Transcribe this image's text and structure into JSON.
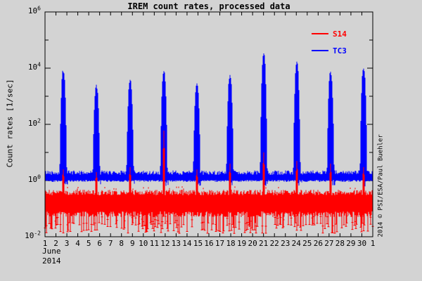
{
  "window": {
    "background": "#d3d3d3"
  },
  "chart_data": {
    "type": "line",
    "title": "IREM count rates, processed data",
    "ylabel": "Count rates [1/sec]",
    "credit": "2014 © PSI/ESA/Paul Buehler",
    "x_axis": {
      "month_label": "June",
      "year_label": "2014",
      "days": 31,
      "tick_labels": [
        "1",
        "2",
        "3",
        "4",
        "5",
        "6",
        "7",
        "8",
        "9",
        "10",
        "11",
        "12",
        "13",
        "14",
        "15",
        "16",
        "17",
        "18",
        "19",
        "20",
        "21",
        "22",
        "23",
        "24",
        "25",
        "26",
        "27",
        "28",
        "29",
        "30",
        "1"
      ]
    },
    "y_axis": {
      "scale": "log",
      "min_exp": -2,
      "max_exp": 6,
      "labeled_exponents": [
        6,
        4,
        2,
        0,
        -2
      ],
      "minor_exponents": [
        5,
        3,
        1,
        -1
      ]
    },
    "legend": [
      {
        "label": "S14",
        "color": "#ff0000"
      },
      {
        "label": "TC3",
        "color": "#0000ff"
      }
    ],
    "series": [
      {
        "name": "S14",
        "color": "#ff0000",
        "band_top_range": [
          0.3,
          0.47
        ],
        "band_bottom_range": [
          0.05,
          0.08
        ],
        "needle_depth_range": [
          0.013,
          0.032
        ],
        "needle_probability": 0.3,
        "perigee_spikes": [
          {
            "day": 2.67,
            "value": 2.5
          },
          {
            "day": 5.7,
            "value": 2.0
          },
          {
            "day": 8.79,
            "value": 3.0
          },
          {
            "day": 11.88,
            "value": 60
          },
          {
            "day": 14.9,
            "value": 2.5
          },
          {
            "day": 17.93,
            "value": 4.0
          },
          {
            "day": 21.02,
            "value": 10
          },
          {
            "day": 24.05,
            "value": 5.0
          },
          {
            "day": 27.14,
            "value": 4.0
          },
          {
            "day": 30.16,
            "value": 3.0
          }
        ]
      },
      {
        "name": "TC3",
        "color": "#0000ff",
        "band_top_range": [
          1.6,
          2.3
        ],
        "band_bottom_range": [
          0.9,
          1.05
        ],
        "peaks": [
          {
            "day": 2.67,
            "value": 8000
          },
          {
            "day": 5.7,
            "value": 2300
          },
          {
            "day": 8.79,
            "value": 3500
          },
          {
            "day": 11.88,
            "value": 8000
          },
          {
            "day": 14.9,
            "value": 2500
          },
          {
            "day": 17.93,
            "value": 5000
          },
          {
            "day": 21.02,
            "value": 35000
          },
          {
            "day": 24.05,
            "value": 16000
          },
          {
            "day": 27.14,
            "value": 7000
          },
          {
            "day": 30.16,
            "value": 10000
          }
        ]
      }
    ]
  }
}
